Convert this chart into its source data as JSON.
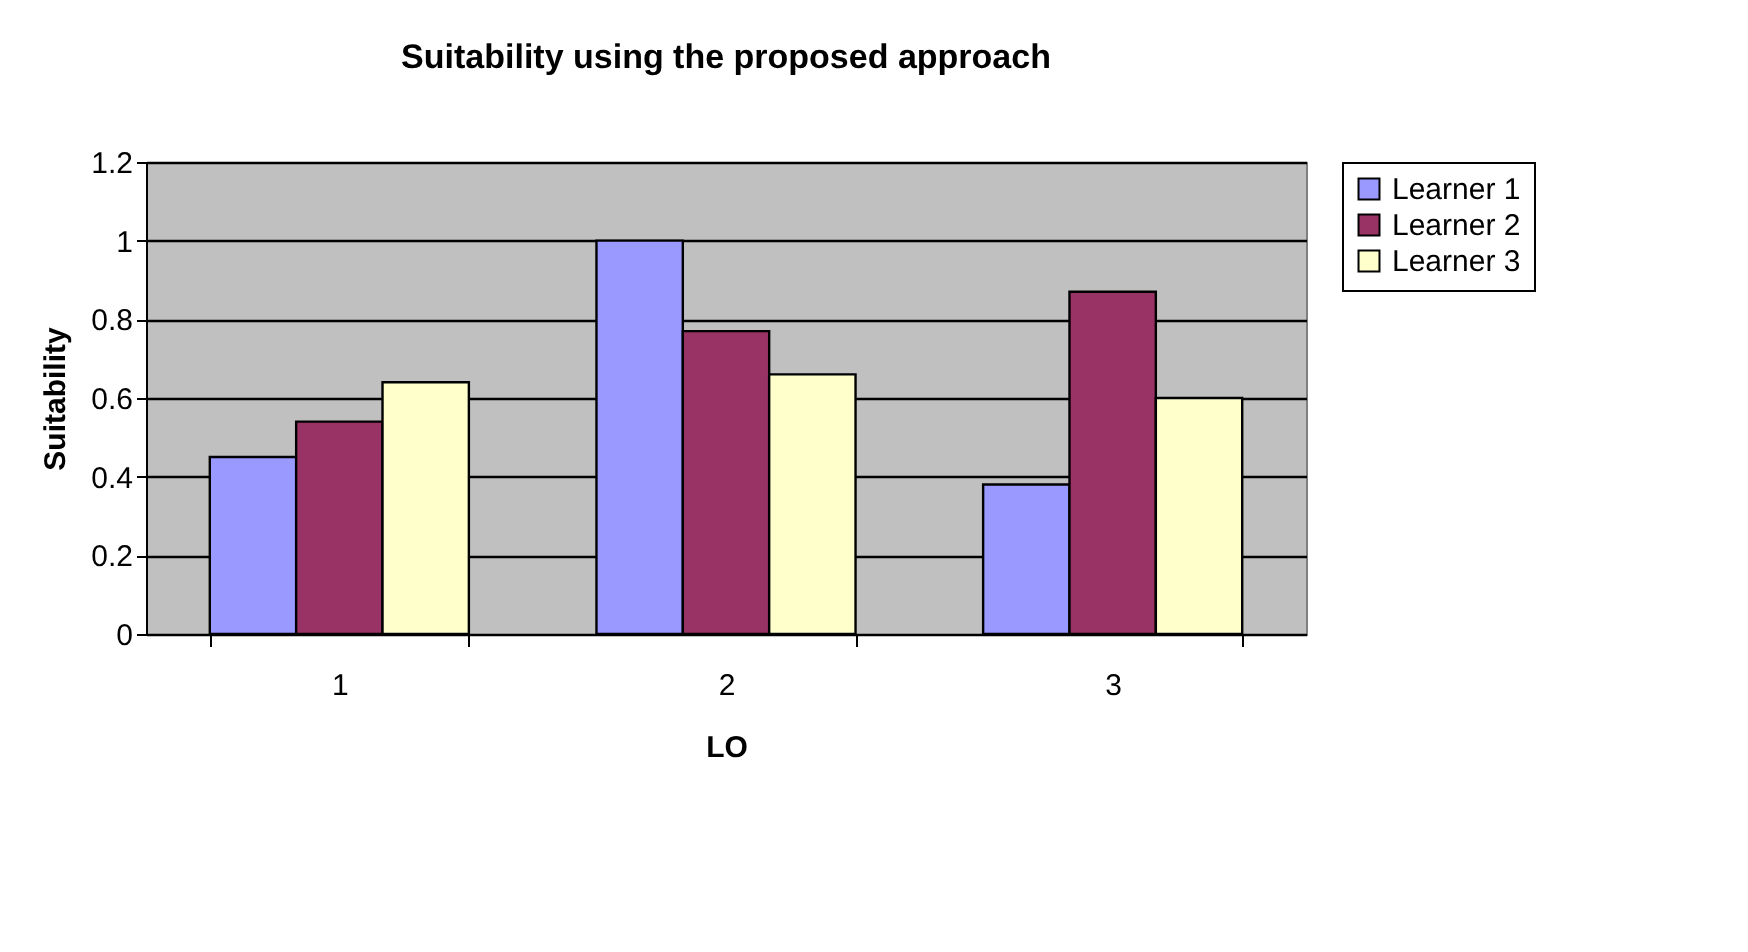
{
  "chart_data": {
    "type": "bar",
    "title": "Suitability using the proposed approach",
    "xlabel": "LO",
    "ylabel": "Suitability",
    "categories": [
      "1",
      "2",
      "3"
    ],
    "series": [
      {
        "name": "Learner 1",
        "color": "#9999ff",
        "values": [
          0.45,
          1.0,
          0.38
        ]
      },
      {
        "name": "Learner 2",
        "color": "#993366",
        "values": [
          0.54,
          0.77,
          0.87
        ]
      },
      {
        "name": "Learner 3",
        "color": "#ffffcc",
        "values": [
          0.64,
          0.66,
          0.6
        ]
      }
    ],
    "ylim": [
      0,
      1.2
    ],
    "yticks": [
      0,
      0.2,
      0.4,
      0.6,
      0.8,
      1,
      1.2
    ],
    "grid": "y",
    "legend": "right"
  }
}
